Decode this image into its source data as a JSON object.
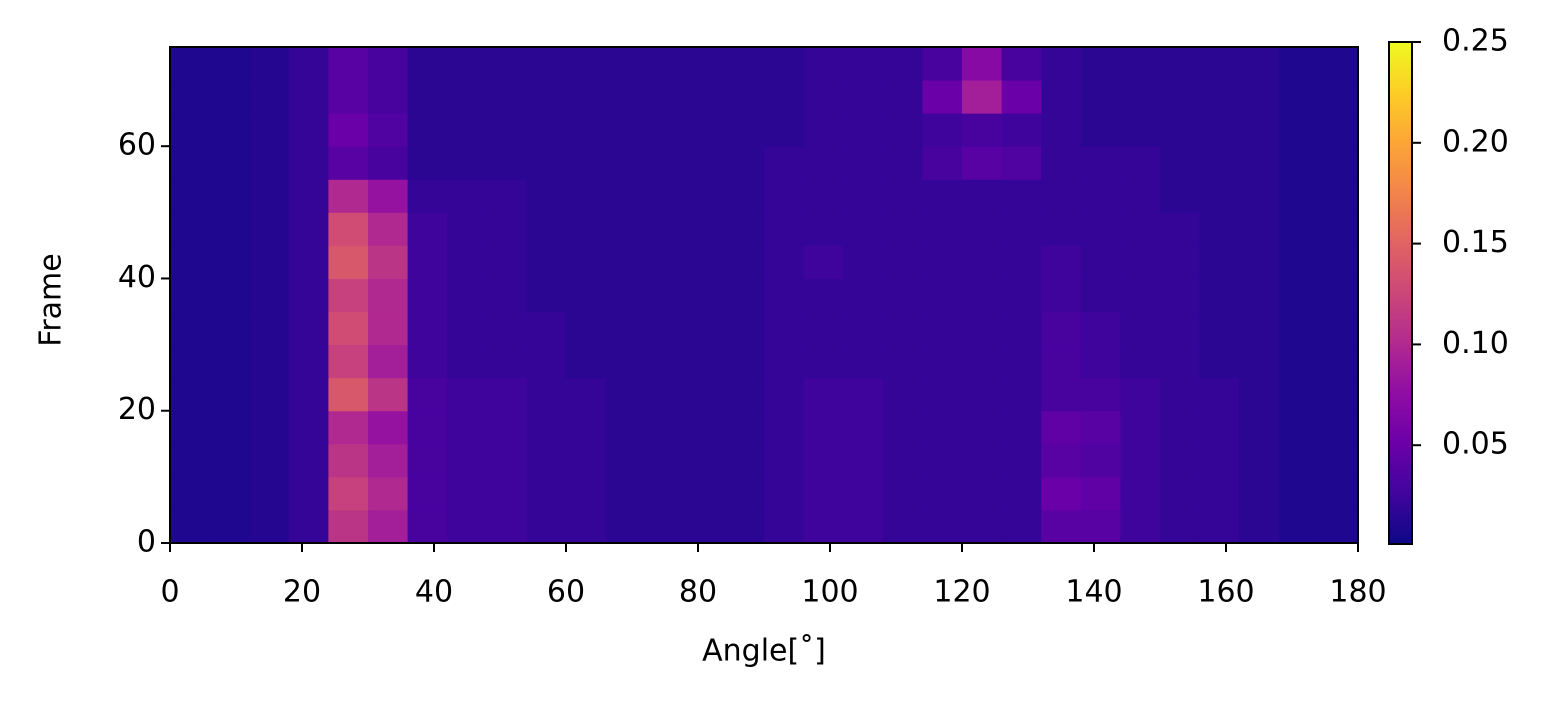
{
  "chart_data": {
    "type": "heatmap",
    "xlabel": "Angle[˚]",
    "ylabel": "Frame",
    "x": [
      0,
      6,
      12,
      18,
      24,
      30,
      36,
      42,
      48,
      54,
      60,
      66,
      72,
      78,
      84,
      90,
      96,
      102,
      108,
      114,
      120,
      126,
      132,
      138,
      144,
      150,
      156,
      162,
      168,
      174,
      180
    ],
    "y": [
      0,
      5,
      10,
      15,
      20,
      25,
      30,
      35,
      40,
      45,
      50,
      55,
      60,
      65,
      70,
      75
    ],
    "values": [
      [
        0.01,
        0.01,
        0.012,
        0.02,
        0.11,
        0.09,
        0.03,
        0.025,
        0.025,
        0.02,
        0.02,
        0.015,
        0.015,
        0.015,
        0.015,
        0.02,
        0.025,
        0.025,
        0.02,
        0.02,
        0.02,
        0.02,
        0.04,
        0.04,
        0.025,
        0.02,
        0.02,
        0.015,
        0.01,
        0.01
      ],
      [
        0.01,
        0.01,
        0.012,
        0.02,
        0.12,
        0.1,
        0.03,
        0.025,
        0.025,
        0.02,
        0.02,
        0.015,
        0.015,
        0.015,
        0.015,
        0.02,
        0.025,
        0.025,
        0.02,
        0.02,
        0.02,
        0.02,
        0.05,
        0.045,
        0.025,
        0.02,
        0.02,
        0.015,
        0.01,
        0.01
      ],
      [
        0.01,
        0.01,
        0.012,
        0.02,
        0.11,
        0.09,
        0.03,
        0.025,
        0.025,
        0.02,
        0.02,
        0.015,
        0.015,
        0.015,
        0.015,
        0.02,
        0.025,
        0.025,
        0.02,
        0.02,
        0.02,
        0.02,
        0.04,
        0.035,
        0.025,
        0.02,
        0.02,
        0.015,
        0.01,
        0.01
      ],
      [
        0.01,
        0.01,
        0.012,
        0.02,
        0.1,
        0.08,
        0.03,
        0.025,
        0.025,
        0.02,
        0.02,
        0.015,
        0.015,
        0.015,
        0.015,
        0.02,
        0.025,
        0.025,
        0.02,
        0.02,
        0.02,
        0.02,
        0.045,
        0.04,
        0.025,
        0.02,
        0.02,
        0.015,
        0.01,
        0.01
      ],
      [
        0.01,
        0.01,
        0.012,
        0.02,
        0.14,
        0.11,
        0.03,
        0.025,
        0.025,
        0.02,
        0.02,
        0.015,
        0.015,
        0.015,
        0.015,
        0.02,
        0.025,
        0.025,
        0.02,
        0.02,
        0.02,
        0.02,
        0.03,
        0.03,
        0.025,
        0.02,
        0.02,
        0.015,
        0.01,
        0.01
      ],
      [
        0.01,
        0.01,
        0.012,
        0.02,
        0.12,
        0.09,
        0.025,
        0.02,
        0.02,
        0.02,
        0.015,
        0.015,
        0.015,
        0.015,
        0.015,
        0.02,
        0.02,
        0.02,
        0.02,
        0.02,
        0.02,
        0.02,
        0.03,
        0.025,
        0.02,
        0.02,
        0.015,
        0.015,
        0.01,
        0.01
      ],
      [
        0.01,
        0.01,
        0.012,
        0.02,
        0.13,
        0.1,
        0.025,
        0.02,
        0.02,
        0.02,
        0.015,
        0.015,
        0.015,
        0.015,
        0.015,
        0.02,
        0.02,
        0.02,
        0.02,
        0.02,
        0.02,
        0.02,
        0.03,
        0.025,
        0.02,
        0.02,
        0.015,
        0.015,
        0.01,
        0.01
      ],
      [
        0.01,
        0.01,
        0.012,
        0.02,
        0.12,
        0.1,
        0.025,
        0.02,
        0.02,
        0.015,
        0.015,
        0.015,
        0.015,
        0.015,
        0.015,
        0.02,
        0.02,
        0.02,
        0.02,
        0.02,
        0.02,
        0.02,
        0.025,
        0.02,
        0.02,
        0.02,
        0.015,
        0.015,
        0.01,
        0.01
      ],
      [
        0.01,
        0.01,
        0.012,
        0.02,
        0.14,
        0.11,
        0.025,
        0.02,
        0.02,
        0.015,
        0.015,
        0.015,
        0.015,
        0.015,
        0.015,
        0.02,
        0.025,
        0.02,
        0.02,
        0.02,
        0.02,
        0.02,
        0.025,
        0.02,
        0.02,
        0.02,
        0.015,
        0.015,
        0.01,
        0.01
      ],
      [
        0.01,
        0.01,
        0.012,
        0.02,
        0.13,
        0.1,
        0.025,
        0.02,
        0.02,
        0.015,
        0.015,
        0.015,
        0.015,
        0.015,
        0.015,
        0.02,
        0.02,
        0.02,
        0.02,
        0.02,
        0.02,
        0.02,
        0.02,
        0.02,
        0.02,
        0.02,
        0.015,
        0.015,
        0.01,
        0.01
      ],
      [
        0.01,
        0.01,
        0.012,
        0.02,
        0.1,
        0.08,
        0.02,
        0.02,
        0.02,
        0.015,
        0.015,
        0.015,
        0.015,
        0.015,
        0.015,
        0.02,
        0.02,
        0.02,
        0.02,
        0.02,
        0.02,
        0.02,
        0.02,
        0.02,
        0.02,
        0.015,
        0.015,
        0.015,
        0.01,
        0.01
      ],
      [
        0.01,
        0.01,
        0.012,
        0.02,
        0.04,
        0.03,
        0.015,
        0.015,
        0.015,
        0.015,
        0.015,
        0.015,
        0.015,
        0.015,
        0.015,
        0.02,
        0.02,
        0.02,
        0.02,
        0.03,
        0.04,
        0.035,
        0.02,
        0.02,
        0.02,
        0.015,
        0.015,
        0.015,
        0.01,
        0.01
      ],
      [
        0.01,
        0.01,
        0.012,
        0.02,
        0.05,
        0.035,
        0.015,
        0.015,
        0.015,
        0.015,
        0.015,
        0.015,
        0.015,
        0.015,
        0.015,
        0.015,
        0.02,
        0.02,
        0.02,
        0.025,
        0.03,
        0.025,
        0.02,
        0.015,
        0.015,
        0.015,
        0.015,
        0.015,
        0.01,
        0.01
      ],
      [
        0.01,
        0.01,
        0.012,
        0.02,
        0.04,
        0.03,
        0.015,
        0.015,
        0.015,
        0.015,
        0.015,
        0.015,
        0.015,
        0.015,
        0.015,
        0.015,
        0.02,
        0.02,
        0.02,
        0.05,
        0.09,
        0.05,
        0.02,
        0.015,
        0.015,
        0.015,
        0.015,
        0.015,
        0.01,
        0.01
      ],
      [
        0.01,
        0.01,
        0.012,
        0.02,
        0.04,
        0.03,
        0.015,
        0.015,
        0.015,
        0.015,
        0.015,
        0.015,
        0.015,
        0.015,
        0.015,
        0.015,
        0.02,
        0.02,
        0.02,
        0.03,
        0.07,
        0.03,
        0.02,
        0.015,
        0.015,
        0.015,
        0.015,
        0.015,
        0.01,
        0.01
      ]
    ],
    "xlim": [
      0,
      180
    ],
    "xticks": [
      0,
      20,
      40,
      60,
      80,
      100,
      120,
      140,
      160,
      180
    ],
    "ylim": [
      0,
      75
    ],
    "yticks": [
      0,
      20,
      40,
      60
    ],
    "colormap": "plasma",
    "clim": [
      0.001,
      0.25
    ],
    "cticks": [
      0.05,
      {
        "value": 0.1,
        "label": "0.10"
      },
      0.15,
      {
        "value": 0.2,
        "label": "0.20"
      },
      0.25
    ]
  }
}
